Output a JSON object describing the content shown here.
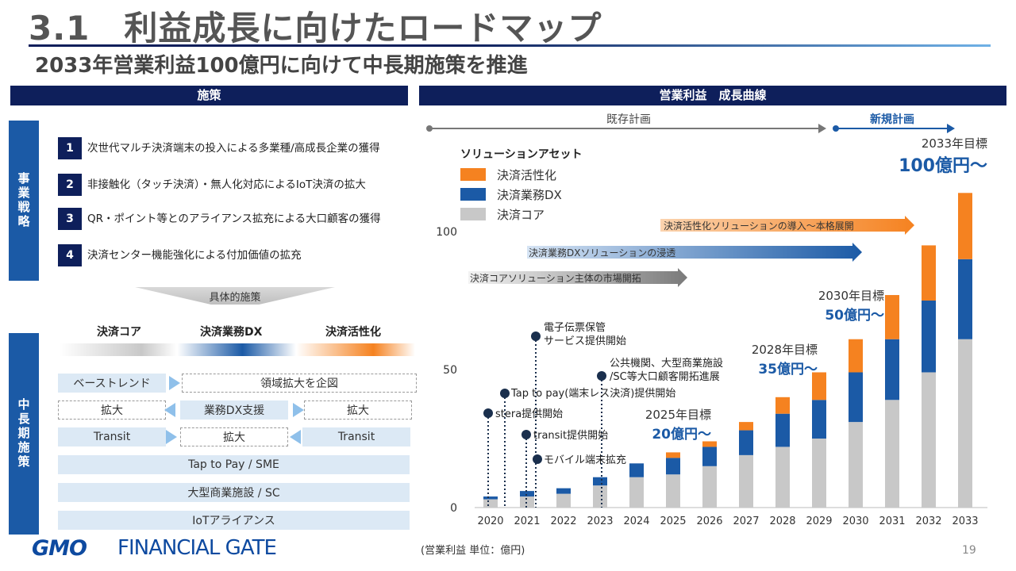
{
  "header": {
    "title": "3.1　利益成長に向けたロードマップ",
    "subtitle": "2033年営業利益100億円に向けて中長期施策を推進"
  },
  "left_panel": {
    "heading": "施策",
    "strategy_tab": "事業戦略",
    "strategies": [
      {
        "num": "1",
        "text": "次世代マルチ決済端末の投入による多業種/高成長企業の獲得"
      },
      {
        "num": "2",
        "text": "非接触化（タッチ決済）・無人化対応によるIoT決済の拡大"
      },
      {
        "num": "3",
        "text": "QR・ポイント等とのアライアンス拡充による大口顧客の獲得"
      },
      {
        "num": "4",
        "text": "決済センター機能強化による付加価値の拡充"
      }
    ],
    "funnel_label": "具体的施策",
    "measures_tab": "中長期施策",
    "categories": [
      "決済コア",
      "決済業務DX",
      "決済活性化"
    ],
    "rows": {
      "r1": [
        "ベーストレンド",
        "領域拡大を企図"
      ],
      "r2": [
        "拡大",
        "業務DX支援",
        "拡大"
      ],
      "r3": [
        "Transit",
        "拡大",
        "Transit"
      ],
      "r4": "Tap to Pay / SME",
      "r5": "大型商業施設 / SC",
      "r6": "IoTアライアンス"
    }
  },
  "right_panel": {
    "heading": "営業利益　成長曲線",
    "existing_plan": "既存計画",
    "new_plan": "新規計画",
    "legend_title": "ソリューションアセット",
    "arrows": [
      "決済活性化ソリューションの導入～本格展開",
      "決済業務DXソリューションの浸透",
      "決済コアソリューション主体の市場開拓"
    ],
    "milestones": [
      "電子伝票保管\nサービス提供開始",
      "公共機関、大型商業施設\n/SC等大口顧客開拓進展",
      "Tap to pay(端末レス決済)提供開始",
      "stera提供開始",
      "transit提供開始",
      "モバイル端末拡充"
    ],
    "targets": [
      {
        "year": "2025年目標",
        "value": "20億円～"
      },
      {
        "year": "2028年目標",
        "value": "35億円～"
      },
      {
        "year": "2030年目標",
        "value": "50億円～"
      },
      {
        "year": "2033年目標",
        "value": "100億円～"
      }
    ]
  },
  "chart_data": {
    "type": "bar",
    "stacked": true,
    "categories": [
      "2020",
      "2021",
      "2022",
      "2023",
      "2024",
      "2025",
      "2026",
      "2027",
      "2028",
      "2029",
      "2030",
      "2031",
      "2032",
      "2033"
    ],
    "series": [
      {
        "name": "決済コア",
        "color": "#c8c8c8",
        "values": [
          3,
          4,
          5,
          8,
          11,
          12,
          15,
          19,
          22,
          25,
          31,
          39,
          49,
          61
        ]
      },
      {
        "name": "決済業務DX",
        "color": "#1b5aa6",
        "values": [
          1,
          2,
          2,
          3,
          5,
          6,
          7,
          9,
          12,
          14,
          18,
          22,
          26,
          29
        ]
      },
      {
        "name": "決済活性化",
        "color": "#f58220",
        "values": [
          0,
          0,
          0,
          0,
          0,
          2,
          2,
          3,
          6,
          10,
          12,
          16,
          20,
          24
        ]
      }
    ],
    "ylim": [
      0,
      100
    ],
    "yticks": [
      0,
      50,
      100
    ],
    "xlabel": "",
    "ylabel": "",
    "unit_note": "(営業利益 単位：億円)",
    "legend_position": "top-left"
  },
  "footer": {
    "logo_gmo": "GMO",
    "logo_rest": "FINANCIAL GATE",
    "page": "19"
  },
  "colors": {
    "navy": "#0e1f5b",
    "blue": "#1b5aa6",
    "orange": "#f58220",
    "gray": "#c8c8c8"
  }
}
